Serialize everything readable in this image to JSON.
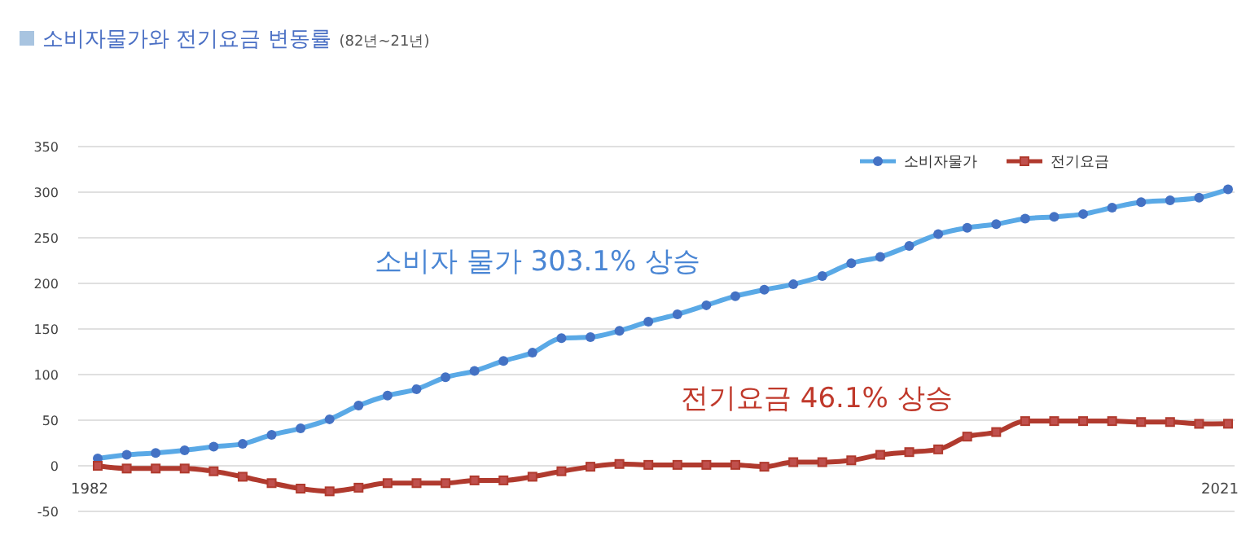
{
  "chart_data": {
    "type": "line",
    "title": "소비자물가와 전기요금 변동률",
    "subtitle": "(82년~21년)",
    "categories": [
      "1982",
      null,
      null,
      null,
      null,
      null,
      null,
      null,
      null,
      null,
      null,
      null,
      null,
      null,
      null,
      null,
      null,
      null,
      null,
      null,
      null,
      null,
      null,
      null,
      null,
      null,
      null,
      null,
      null,
      null,
      null,
      null,
      null,
      null,
      null,
      null,
      null,
      null,
      null,
      "2021"
    ],
    "series": [
      {
        "name": "소비자물가",
        "color": "#5aa9e6",
        "marker": "circle",
        "values": [
          8,
          12,
          14,
          17,
          21,
          24,
          34,
          41,
          51,
          66,
          77,
          84,
          97,
          104,
          115,
          124,
          140,
          141,
          148,
          158,
          166,
          176,
          186,
          193,
          199,
          208,
          222,
          229,
          241,
          254,
          261,
          265,
          271,
          273,
          276,
          283,
          289,
          291,
          294,
          303.1
        ]
      },
      {
        "name": "전기요금",
        "color": "#b03a2e",
        "marker": "square",
        "values": [
          0,
          -3,
          -3,
          -3,
          -6,
          -12,
          -19,
          -25,
          -28,
          -24,
          -19,
          -19,
          -19,
          -16,
          -16,
          -12,
          -6,
          -1,
          2,
          1,
          1,
          1,
          1,
          -1,
          4,
          4,
          6,
          12,
          15,
          18,
          32,
          37,
          49,
          49,
          49,
          49,
          48,
          48,
          46,
          46.1
        ]
      }
    ],
    "annotations": [
      "소비자 물가 303.1% 상승",
      "전기요금 46.1% 상승"
    ],
    "ylim": [
      -50,
      350
    ],
    "yticks": [
      -50,
      0,
      50,
      100,
      150,
      200,
      250,
      300,
      350
    ],
    "grid": "y",
    "legend": "top right"
  }
}
